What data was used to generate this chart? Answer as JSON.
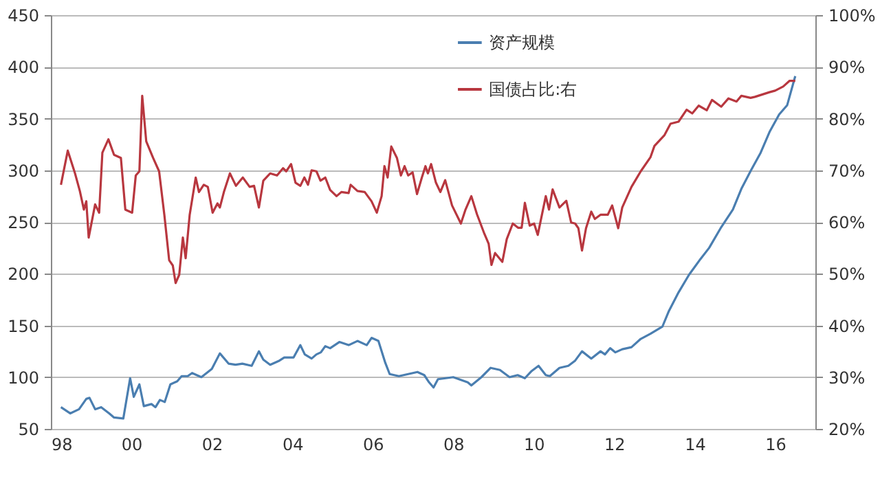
{
  "chart_data": {
    "type": "line",
    "xlim": [
      1998,
      2017
    ],
    "xticks": [
      {
        "value": 1998,
        "label": "98"
      },
      {
        "value": 2000,
        "label": "00"
      },
      {
        "value": 2002,
        "label": "02"
      },
      {
        "value": 2004,
        "label": "04"
      },
      {
        "value": 2006,
        "label": "06"
      },
      {
        "value": 2008,
        "label": "08"
      },
      {
        "value": 2010,
        "label": "10"
      },
      {
        "value": 2012,
        "label": "12"
      },
      {
        "value": 2014,
        "label": "14"
      },
      {
        "value": 2016,
        "label": "16"
      }
    ],
    "ylim": [
      50,
      450
    ],
    "yticks": [
      50,
      100,
      150,
      200,
      250,
      300,
      350,
      400,
      450
    ],
    "y2lim": [
      20,
      100
    ],
    "y2ticks": [
      {
        "value": 20,
        "label": "20%"
      },
      {
        "value": 30,
        "label": "30%"
      },
      {
        "value": 40,
        "label": "40%"
      },
      {
        "value": 50,
        "label": "50%"
      },
      {
        "value": 60,
        "label": "60%"
      },
      {
        "value": 70,
        "label": "70%"
      },
      {
        "value": 80,
        "label": "80%"
      },
      {
        "value": 90,
        "label": "90%"
      },
      {
        "value": 100,
        "label": "100%"
      }
    ],
    "grid": "y",
    "legend": "top",
    "series": [
      {
        "name": "资产规模",
        "color": "#4a7eb0",
        "x": [
          1998.25,
          1998.48,
          1998.7,
          1998.88,
          1998.96,
          1999.1,
          1999.25,
          1999.45,
          1999.57,
          1999.8,
          1999.97,
          2000.06,
          2000.2,
          2000.31,
          2000.5,
          2000.6,
          2000.71,
          2000.83,
          2000.97,
          2001.14,
          2001.25,
          2001.4,
          2001.51,
          2001.74,
          2002.0,
          2002.2,
          2002.42,
          2002.59,
          2002.76,
          2002.99,
          2003.17,
          2003.28,
          2003.45,
          2003.68,
          2003.8,
          2004.03,
          2004.2,
          2004.31,
          2004.48,
          2004.6,
          2004.71,
          2004.82,
          2004.94,
          2005.17,
          2005.4,
          2005.62,
          2005.85,
          2005.97,
          2006.14,
          2006.31,
          2006.42,
          2006.65,
          2006.88,
          2007.11,
          2007.28,
          2007.4,
          2007.51,
          2007.62,
          2008.0,
          2008.36,
          2008.45,
          2008.7,
          2008.93,
          2009.16,
          2009.4,
          2009.6,
          2009.78,
          2009.95,
          2010.12,
          2010.3,
          2010.4,
          2010.64,
          2010.86,
          2011.03,
          2011.2,
          2011.43,
          2011.66,
          2011.77,
          2011.9,
          2012.03,
          2012.2,
          2012.43,
          2012.66,
          2012.9,
          2013.2,
          2013.36,
          2013.6,
          2013.86,
          2014.14,
          2014.36,
          2014.66,
          2014.95,
          2015.16,
          2015.4,
          2015.64,
          2015.86,
          2016.1,
          2016.3,
          2016.5
        ],
        "values": [
          71,
          65,
          69,
          79,
          80,
          69,
          71,
          65,
          61,
          60,
          99,
          81,
          93,
          72,
          74,
          71,
          78,
          76,
          93,
          96,
          101,
          101,
          104,
          100,
          108,
          123,
          113,
          112,
          113,
          111,
          125,
          117,
          112,
          116,
          119,
          119,
          131,
          122,
          118,
          122,
          124,
          130,
          128,
          134,
          131,
          135,
          131,
          138,
          135,
          114,
          103,
          101,
          103,
          105,
          102,
          95,
          90,
          98,
          100,
          95,
          92,
          100,
          109,
          107,
          100,
          102,
          99,
          106,
          111,
          102,
          101,
          109,
          111,
          116,
          125,
          118,
          125,
          122,
          128,
          124,
          127,
          129,
          137,
          142,
          149,
          164,
          182,
          199,
          214,
          225,
          245,
          262,
          282,
          300,
          317,
          337,
          354,
          363,
          391
        ]
      },
      {
        "name": "国债占比:右",
        "color": "#b8373f",
        "axis": "y2",
        "x": [
          1998.25,
          1998.42,
          1998.6,
          1998.72,
          1998.82,
          1998.88,
          1998.94,
          1999.1,
          1999.2,
          1999.28,
          1999.43,
          1999.57,
          1999.74,
          1999.85,
          2000.02,
          2000.11,
          2000.2,
          2000.27,
          2000.37,
          2000.54,
          2000.69,
          2000.82,
          2000.94,
          2001.03,
          2001.1,
          2001.19,
          2001.28,
          2001.35,
          2001.45,
          2001.6,
          2001.68,
          2001.8,
          2001.9,
          2002.02,
          2002.14,
          2002.2,
          2002.3,
          2002.45,
          2002.6,
          2002.77,
          2002.94,
          2003.05,
          2003.17,
          2003.28,
          2003.45,
          2003.62,
          2003.77,
          2003.85,
          2003.97,
          2004.08,
          2004.2,
          2004.3,
          2004.39,
          2004.48,
          2004.6,
          2004.7,
          2004.82,
          2004.94,
          2005.1,
          2005.22,
          2005.4,
          2005.45,
          2005.62,
          2005.8,
          2005.97,
          2006.1,
          2006.22,
          2006.29,
          2006.37,
          2006.46,
          2006.6,
          2006.7,
          2006.79,
          2006.88,
          2006.99,
          2007.1,
          2007.22,
          2007.31,
          2007.37,
          2007.45,
          2007.57,
          2007.68,
          2007.8,
          2007.97,
          2008.19,
          2008.3,
          2008.45,
          2008.59,
          2008.76,
          2008.88,
          2008.95,
          2009.04,
          2009.22,
          2009.33,
          2009.48,
          2009.61,
          2009.7,
          2009.78,
          2009.9,
          2010.01,
          2010.1,
          2010.3,
          2010.38,
          2010.47,
          2010.64,
          2010.81,
          2010.93,
          2011.03,
          2011.11,
          2011.2,
          2011.3,
          2011.43,
          2011.52,
          2011.66,
          2011.84,
          2011.95,
          2012.1,
          2012.2,
          2012.43,
          2012.66,
          2012.9,
          2013.0,
          2013.25,
          2013.4,
          2013.6,
          2013.8,
          2013.94,
          2014.1,
          2014.3,
          2014.43,
          2014.66,
          2014.84,
          2015.04,
          2015.16,
          2015.39,
          2015.5,
          2015.7,
          2015.86,
          2016.0,
          2016.2,
          2016.36,
          2016.5
        ],
        "values": [
          67.2,
          73.8,
          69.4,
          66,
          62.4,
          64,
          57,
          63.4,
          61.8,
          73.4,
          76,
          73,
          72.4,
          62.4,
          61.8,
          69,
          69.8,
          84.4,
          75.6,
          72.4,
          69.8,
          61.4,
          52.6,
          51.6,
          48.2,
          49.8,
          57,
          53,
          61.4,
          68.6,
          65.8,
          67.2,
          66.8,
          61.8,
          63.6,
          62.8,
          65.8,
          69.4,
          67,
          68.6,
          66.8,
          67,
          62.8,
          68,
          69.4,
          69,
          70.4,
          69.8,
          71.2,
          67.6,
          67,
          68.6,
          67.2,
          70,
          69.8,
          68,
          68.6,
          66.2,
          65,
          65.8,
          65.6,
          67.2,
          66,
          65.8,
          64,
          61.8,
          65,
          70.8,
          68.6,
          74.6,
          72.4,
          69,
          70.8,
          69,
          69.6,
          65.4,
          68.6,
          70.8,
          69.4,
          71.2,
          67.6,
          65.8,
          68.1,
          63.2,
          59.7,
          62.3,
          65,
          61.5,
          58,
          55.8,
          51.7,
          54,
          52.3,
          56.7,
          59.7,
          58.9,
          58.9,
          63.7,
          59.3,
          59.7,
          57.5,
          65,
          62.4,
          66.3,
          62.8,
          64.1,
          59.9,
          59.7,
          58.8,
          54.5,
          58.8,
          62,
          60.6,
          61.4,
          61.4,
          63.2,
          58.8,
          62.8,
          66.8,
          69.8,
          72.5,
          74.7,
          76.8,
          79,
          79.4,
          81.7,
          81,
          82.5,
          81.6,
          83.6,
          82.3,
          83.9,
          83.3,
          84.4,
          84,
          84.2,
          84.7,
          85.1,
          85.4,
          86.2,
          87.3,
          87.3
        ]
      }
    ]
  }
}
